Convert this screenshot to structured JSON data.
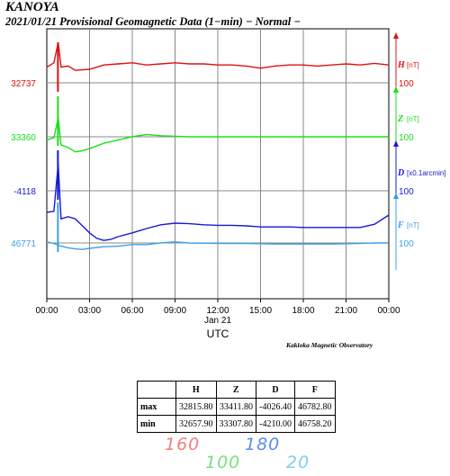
{
  "header": {
    "station": "KANOYA",
    "subtitle": "2021/01/21  Provisional Geomagnetic Data (1−min)  − Normal −"
  },
  "chart_data": {
    "type": "line",
    "x_ticks": [
      "00:00",
      "03:00",
      "06:00",
      "09:00",
      "12:00",
      "15:00",
      "18:00",
      "21:00",
      "00:00"
    ],
    "x_date_label": "Jan 21",
    "x_axis_label": "UTC",
    "xlim_hours": [
      0,
      24
    ],
    "grid": true,
    "series": [
      {
        "name": "H",
        "unit": "[nT]",
        "scale_label": "100",
        "base_label": "32737",
        "color": "#e01010",
        "x": [
          0,
          0.5,
          0.8,
          1,
          1.5,
          2,
          3,
          4,
          5,
          6,
          7,
          8,
          9,
          10,
          11,
          12,
          13,
          14,
          15,
          16,
          17,
          18,
          19,
          20,
          21,
          22,
          23,
          24
        ],
        "y": [
          32766,
          32774,
          32812,
          32766,
          32768,
          32760,
          32762,
          32770,
          32772,
          32774,
          32770,
          32772,
          32774,
          32772,
          32772,
          32770,
          32770,
          32768,
          32764,
          32768,
          32770,
          32770,
          32768,
          32770,
          32772,
          32770,
          32773,
          32770
        ]
      },
      {
        "name": "Z",
        "unit": "[nT]",
        "scale_label": "100",
        "base_label": "33360",
        "color": "#18e018",
        "x": [
          0,
          0.5,
          0.8,
          1,
          1.5,
          2,
          2.5,
          3,
          4,
          5,
          6,
          7,
          8,
          9,
          10,
          12,
          14,
          16,
          18,
          20,
          22,
          24
        ],
        "y": [
          33354,
          33358,
          33395,
          33345,
          33340,
          33332,
          33334,
          33338,
          33348,
          33354,
          33360,
          33364,
          33362,
          33361,
          33360,
          33360,
          33360,
          33360,
          33360,
          33360,
          33360,
          33360
        ]
      },
      {
        "name": "D",
        "unit": "[x0.1arcmin]",
        "scale_label": "100",
        "base_label": "-4118",
        "color": "#1818d8",
        "x": [
          0,
          0.5,
          0.8,
          1,
          1.5,
          2,
          3,
          3.5,
          4,
          4.5,
          5,
          6,
          7,
          8,
          9,
          10,
          11,
          12,
          13,
          14,
          15,
          16,
          17,
          18,
          19,
          20,
          21,
          22,
          23,
          24
        ],
        "y": [
          -4158,
          -4156,
          -4068,
          -4170,
          -4166,
          -4170,
          -4196,
          -4206,
          -4210,
          -4208,
          -4203,
          -4196,
          -4188,
          -4181,
          -4178,
          -4179,
          -4181,
          -4182,
          -4182,
          -4183,
          -4185,
          -4185,
          -4185,
          -4186,
          -4186,
          -4186,
          -4186,
          -4186,
          -4180,
          -4163
        ]
      },
      {
        "name": "F",
        "unit": "[nT]",
        "scale_label": "100",
        "base_label": "46771",
        "color": "#3ca0ea",
        "x": [
          0,
          0.5,
          1,
          1.5,
          2,
          2.5,
          3,
          4,
          5,
          6,
          7,
          8,
          9,
          10,
          12,
          14,
          16,
          18,
          20,
          22,
          23,
          24
        ],
        "y": [
          46773,
          46770,
          46765,
          46762,
          46760,
          46759,
          46761,
          46764,
          46765,
          46768,
          46768,
          46771,
          46773,
          46771,
          46770,
          46770,
          46769,
          46769,
          46769,
          46770,
          46771,
          46771
        ]
      }
    ]
  },
  "credit": "Kakioka Magnetic Observatory",
  "stats": {
    "columns": [
      "",
      "H",
      "Z",
      "D",
      "F"
    ],
    "rows": [
      {
        "label": "max",
        "values": [
          "32815.80",
          "33411.80",
          "-4026.40",
          "46782.80"
        ]
      },
      {
        "label": "min",
        "values": [
          "32657.90",
          "33307.80",
          "-4210.00",
          "46758.20"
        ]
      }
    ]
  },
  "handwritten": {
    "h": {
      "text": "160",
      "color": "#f08080"
    },
    "z": {
      "text": "100",
      "color": "#7be07b"
    },
    "d": {
      "text": "180",
      "color": "#5a8ee8"
    },
    "f": {
      "text": "20",
      "color": "#7fd0ec"
    }
  }
}
